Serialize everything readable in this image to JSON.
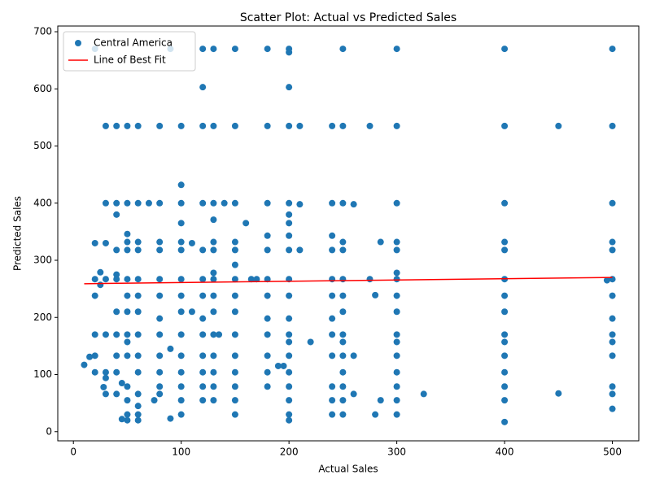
{
  "chart_data": {
    "type": "scatter",
    "title": "Scatter Plot: Actual vs Predicted Sales",
    "xlabel": "Actual Sales",
    "ylabel": "Predicted Sales",
    "xlim": [
      -14.5,
      524.5
    ],
    "ylim": [
      -16,
      710
    ],
    "xticks": [
      0,
      100,
      200,
      300,
      400,
      500
    ],
    "yticks": [
      0,
      100,
      200,
      300,
      400,
      500,
      600,
      700
    ],
    "legend": "upper left",
    "series": [
      {
        "name": "Central America",
        "type": "scatter",
        "color": "#1f77b4",
        "x": [
          400,
          400,
          400,
          400,
          400,
          400,
          400,
          400,
          400,
          400,
          400,
          400,
          400,
          400,
          400,
          300,
          300,
          300,
          300,
          300,
          300,
          300,
          300,
          300,
          300,
          300,
          300,
          300,
          300,
          300,
          300,
          500,
          500,
          500,
          500,
          500,
          500,
          500,
          500,
          500,
          500,
          500,
          500,
          500,
          500,
          250,
          250,
          250,
          250,
          250,
          250,
          250,
          250,
          250,
          250,
          250,
          250,
          250,
          250,
          250,
          240,
          240,
          240,
          240,
          240,
          240,
          240,
          240,
          240,
          240,
          240,
          240,
          200,
          200,
          200,
          200,
          200,
          200,
          200,
          200,
          200,
          200,
          200,
          200,
          200,
          200,
          200,
          200,
          200,
          200,
          200,
          200,
          180,
          180,
          180,
          180,
          180,
          180,
          180,
          180,
          180,
          180,
          180,
          180,
          150,
          150,
          150,
          150,
          150,
          150,
          150,
          150,
          150,
          150,
          150,
          150,
          150,
          150,
          150,
          130,
          130,
          130,
          130,
          130,
          130,
          130,
          130,
          130,
          130,
          130,
          130,
          130,
          130,
          130,
          120,
          120,
          120,
          120,
          120,
          120,
          120,
          120,
          120,
          120,
          120,
          120,
          120,
          100,
          100,
          100,
          100,
          100,
          100,
          100,
          100,
          100,
          100,
          100,
          100,
          100,
          100,
          100,
          80,
          80,
          80,
          80,
          80,
          80,
          80,
          80,
          80,
          80,
          80,
          80,
          60,
          60,
          60,
          60,
          60,
          60,
          60,
          60,
          60,
          60,
          60,
          60,
          60,
          60,
          50,
          50,
          50,
          50,
          50,
          50,
          50,
          50,
          50,
          50,
          50,
          50,
          50,
          50,
          50,
          40,
          40,
          40,
          40,
          40,
          40,
          40,
          40,
          40,
          40,
          40,
          30,
          30,
          30,
          30,
          30,
          30,
          30,
          30,
          20,
          20,
          20,
          20,
          20,
          20,
          10,
          15,
          25,
          25,
          28,
          45,
          45,
          90,
          90,
          110,
          110,
          160,
          190,
          195,
          210,
          210,
          210,
          220,
          260,
          260,
          260,
          275,
          275,
          280,
          280,
          285,
          285,
          325,
          450,
          450,
          495,
          90,
          20,
          165,
          170,
          140,
          135,
          70,
          75
        ],
        "values": [
          670,
          535,
          400,
          332,
          318,
          267,
          238,
          210,
          170,
          157,
          133,
          104,
          79,
          55,
          17,
          670,
          535,
          400,
          332,
          318,
          278,
          267,
          238,
          210,
          170,
          157,
          133,
          104,
          79,
          55,
          30,
          670,
          535,
          400,
          332,
          318,
          267,
          238,
          198,
          170,
          157,
          133,
          79,
          66,
          40,
          670,
          535,
          400,
          332,
          318,
          267,
          238,
          210,
          170,
          157,
          133,
          104,
          79,
          55,
          30,
          535,
          400,
          343,
          318,
          267,
          238,
          198,
          170,
          133,
          79,
          55,
          30,
          670,
          664,
          603,
          535,
          400,
          380,
          365,
          343,
          318,
          267,
          238,
          198,
          170,
          157,
          133,
          104,
          79,
          55,
          30,
          20,
          670,
          535,
          400,
          343,
          318,
          267,
          238,
          198,
          170,
          133,
          104,
          79,
          670,
          535,
          400,
          332,
          318,
          292,
          267,
          238,
          210,
          170,
          133,
          104,
          79,
          55,
          30,
          670,
          535,
          400,
          371,
          332,
          318,
          278,
          267,
          238,
          210,
          170,
          133,
          104,
          79,
          55,
          670,
          603,
          535,
          400,
          318,
          267,
          238,
          198,
          170,
          133,
          104,
          79,
          55,
          535,
          432,
          400,
          365,
          332,
          318,
          267,
          238,
          210,
          170,
          133,
          104,
          79,
          55,
          30,
          535,
          400,
          332,
          318,
          267,
          238,
          198,
          170,
          133,
          104,
          79,
          66,
          535,
          400,
          332,
          318,
          267,
          238,
          210,
          170,
          133,
          104,
          66,
          45,
          30,
          20,
          535,
          400,
          346,
          332,
          318,
          267,
          238,
          210,
          170,
          157,
          133,
          79,
          55,
          30,
          20,
          535,
          400,
          380,
          318,
          275,
          267,
          210,
          170,
          133,
          104,
          66,
          535,
          400,
          330,
          267,
          170,
          104,
          94,
          66,
          330,
          267,
          238,
          170,
          133,
          104,
          117,
          131,
          279,
          257,
          78,
          85,
          22,
          23,
          145,
          330,
          210,
          365,
          115,
          115,
          535,
          398,
          318,
          157,
          398,
          133,
          66,
          535,
          267,
          239,
          30,
          332,
          55,
          66,
          535,
          67,
          265,
          670,
          670,
          267,
          267,
          400,
          170,
          400,
          55
        ]
      },
      {
        "name": "Line of Best Fit",
        "type": "line",
        "color": "#ff0000",
        "x": [
          10,
          500
        ],
        "values": [
          259,
          270
        ]
      }
    ]
  }
}
